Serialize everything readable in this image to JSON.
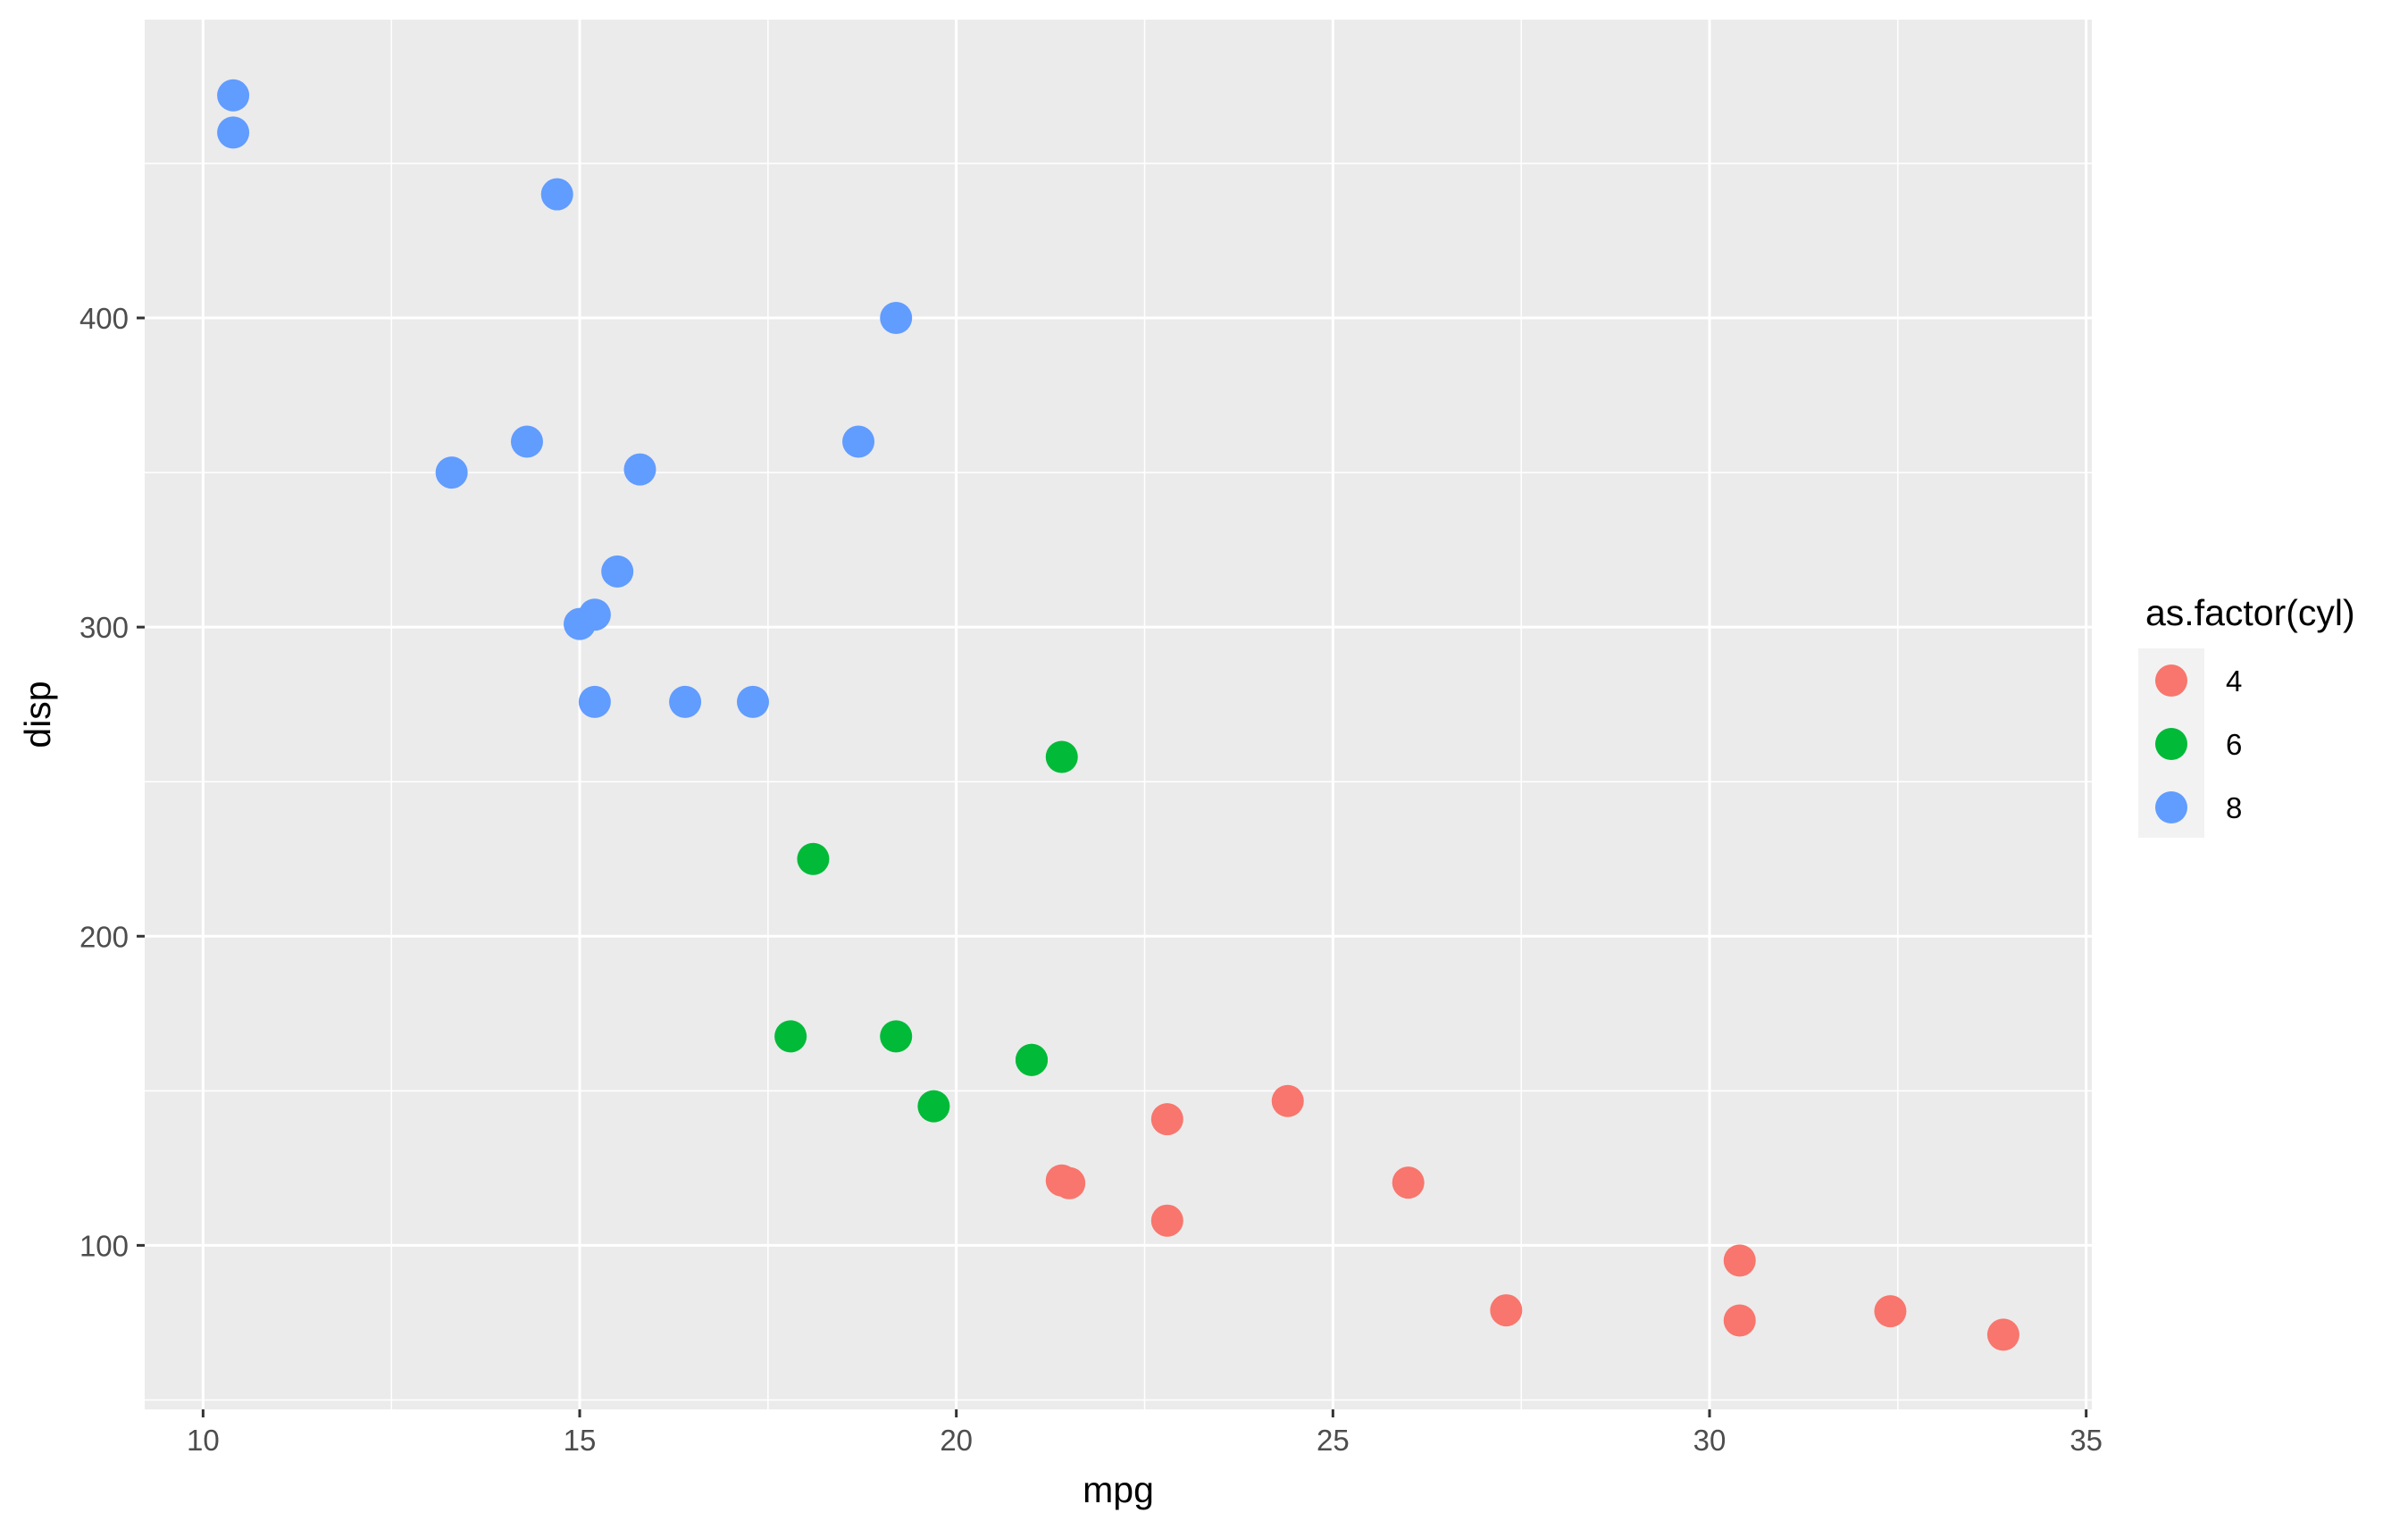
{
  "chart_data": {
    "type": "scatter",
    "xlabel": "mpg",
    "ylabel": "disp",
    "xlim": [
      9.225,
      35.075
    ],
    "ylim": [
      46.95,
      496.5
    ],
    "x_ticks": [
      10,
      15,
      20,
      25,
      30,
      35
    ],
    "y_ticks": [
      100,
      200,
      300,
      400
    ],
    "x_minor": [
      12.5,
      17.5,
      22.5,
      27.5,
      32.5
    ],
    "y_minor": [
      50,
      150,
      250,
      350,
      450
    ],
    "grid": true,
    "legend": {
      "title": "as.factor(cyl)",
      "position": "right"
    },
    "series": [
      {
        "name": "4",
        "color": "#F8766D",
        "points": [
          [
            22.8,
            108
          ],
          [
            24.4,
            146.7
          ],
          [
            22.8,
            140.8
          ],
          [
            32.4,
            78.7
          ],
          [
            30.4,
            75.7
          ],
          [
            33.9,
            71.1
          ],
          [
            21.5,
            120.1
          ],
          [
            27.3,
            79
          ],
          [
            26.0,
            120.3
          ],
          [
            30.4,
            95.1
          ],
          [
            21.4,
            121
          ]
        ]
      },
      {
        "name": "6",
        "color": "#00BA38",
        "points": [
          [
            21.0,
            160
          ],
          [
            21.0,
            160
          ],
          [
            21.4,
            258
          ],
          [
            18.1,
            225
          ],
          [
            19.2,
            167.6
          ],
          [
            17.8,
            167.6
          ],
          [
            19.7,
            145
          ]
        ]
      },
      {
        "name": "8",
        "color": "#619CFF",
        "points": [
          [
            18.7,
            360
          ],
          [
            14.3,
            360
          ],
          [
            16.4,
            275.8
          ],
          [
            17.3,
            275.8
          ],
          [
            15.2,
            275.8
          ],
          [
            10.4,
            472
          ],
          [
            10.4,
            460
          ],
          [
            14.7,
            440
          ],
          [
            15.5,
            318
          ],
          [
            15.2,
            304
          ],
          [
            13.3,
            350
          ],
          [
            19.2,
            400
          ],
          [
            15.8,
            351
          ],
          [
            15.0,
            301
          ]
        ]
      }
    ]
  }
}
